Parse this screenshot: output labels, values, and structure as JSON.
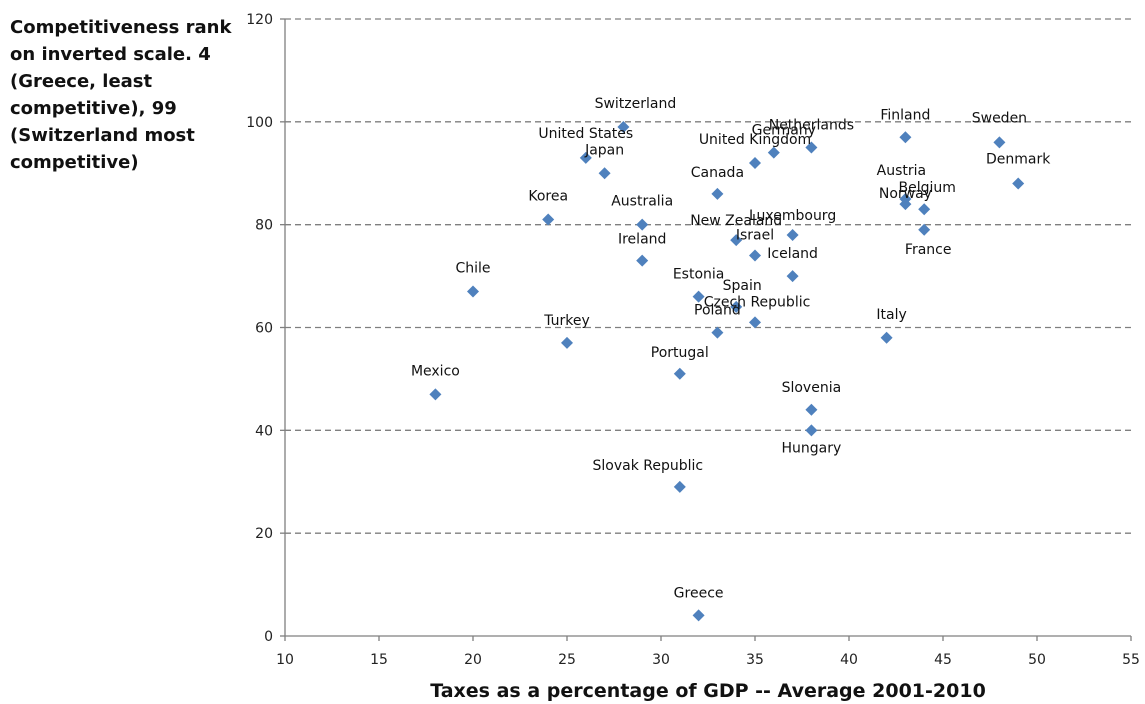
{
  "chart_data": {
    "type": "scatter",
    "title": "",
    "xlabel": "Taxes as a percentage of GDP -- Average 2001-2010",
    "ylabel": "Competitiveness rank on inverted scale.  4 (Greece, least competitive), 99 (Switzerland most competitive)",
    "xlim": [
      10,
      55
    ],
    "ylim": [
      0,
      120
    ],
    "xticks": [
      10,
      15,
      20,
      25,
      30,
      35,
      40,
      45,
      50,
      55
    ],
    "yticks": [
      0,
      20,
      40,
      60,
      80,
      100,
      120
    ],
    "grid": "horizontal dashed",
    "marker_color": "#4F81BD",
    "points": [
      {
        "label": "Mexico",
        "x": 18,
        "y": 47
      },
      {
        "label": "Chile",
        "x": 20,
        "y": 67
      },
      {
        "label": "Korea",
        "x": 24,
        "y": 81
      },
      {
        "label": "Turkey",
        "x": 25,
        "y": 57
      },
      {
        "label": "United States",
        "x": 26,
        "y": 93
      },
      {
        "label": "Japan",
        "x": 27,
        "y": 90
      },
      {
        "label": "Switzerland",
        "x": 28,
        "y": 99
      },
      {
        "label": "Australia",
        "x": 29,
        "y": 80
      },
      {
        "label": "Ireland",
        "x": 29,
        "y": 73
      },
      {
        "label": "Portugal",
        "x": 31,
        "y": 51
      },
      {
        "label": "Slovak Republic",
        "x": 31,
        "y": 29
      },
      {
        "label": "Greece",
        "x": 32,
        "y": 4
      },
      {
        "label": "Estonia",
        "x": 32,
        "y": 66
      },
      {
        "label": "Canada",
        "x": 33,
        "y": 86
      },
      {
        "label": "Poland",
        "x": 33,
        "y": 59
      },
      {
        "label": "Spain",
        "x": 34,
        "y": 64
      },
      {
        "label": "New Zealand",
        "x": 34,
        "y": 77
      },
      {
        "label": "United Kingdom",
        "x": 35,
        "y": 92
      },
      {
        "label": "Israel",
        "x": 35,
        "y": 74
      },
      {
        "label": "Czech Republic",
        "x": 35,
        "y": 61
      },
      {
        "label": "Germany",
        "x": 36,
        "y": 94
      },
      {
        "label": "Luxembourg",
        "x": 37,
        "y": 78
      },
      {
        "label": "Iceland",
        "x": 37,
        "y": 70
      },
      {
        "label": "Netherlands",
        "x": 38,
        "y": 95
      },
      {
        "label": "Slovenia",
        "x": 38,
        "y": 44
      },
      {
        "label": "Hungary",
        "x": 38,
        "y": 40
      },
      {
        "label": "Italy",
        "x": 42,
        "y": 58
      },
      {
        "label": "Finland",
        "x": 43,
        "y": 97
      },
      {
        "label": "Austria",
        "x": 43,
        "y": 85
      },
      {
        "label": "Norway",
        "x": 43,
        "y": 84
      },
      {
        "label": "Belgium",
        "x": 44,
        "y": 83
      },
      {
        "label": "France",
        "x": 44,
        "y": 79
      },
      {
        "label": "Sweden",
        "x": 48,
        "y": 96
      },
      {
        "label": "Denmark",
        "x": 49,
        "y": 88
      }
    ]
  }
}
